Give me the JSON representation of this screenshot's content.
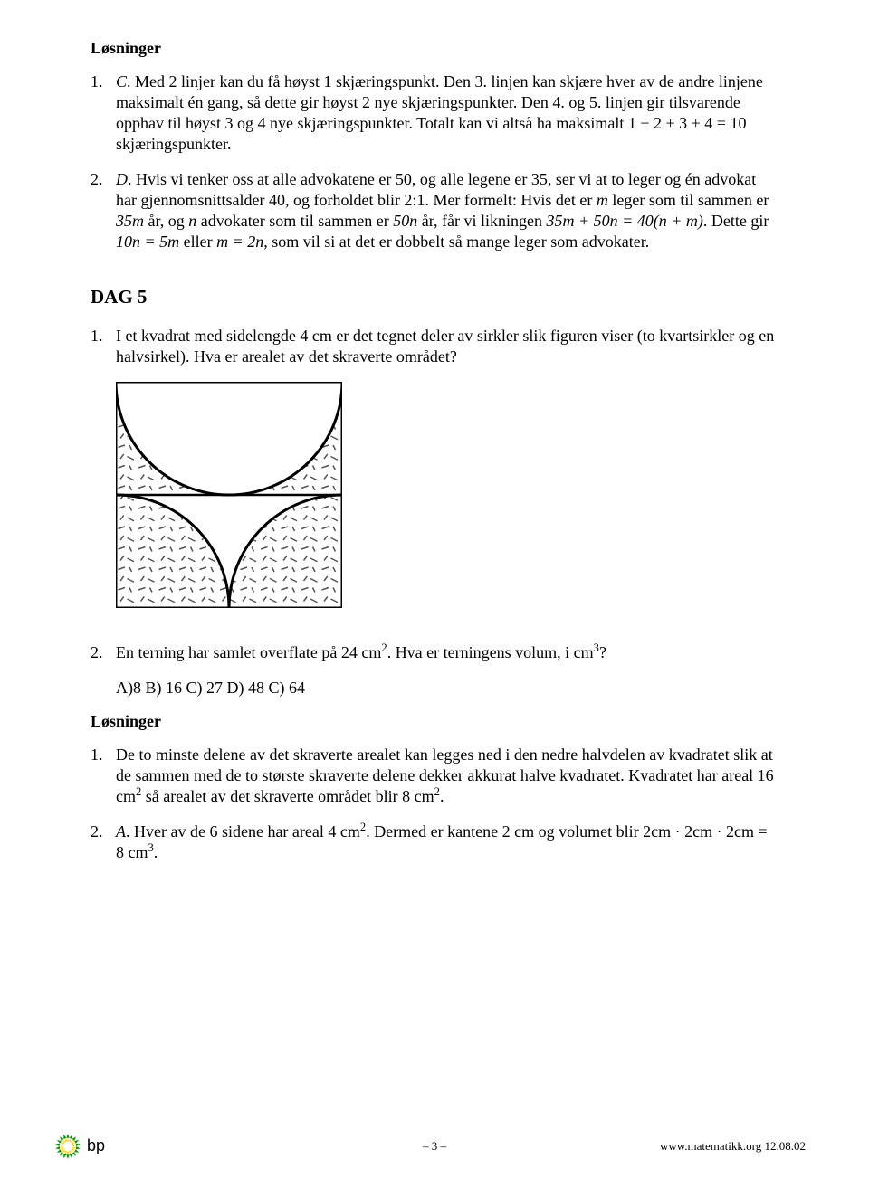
{
  "heading_solutions": "Løsninger",
  "sol1": {
    "marker": "1.",
    "text_html": "<span class='italic'>C</span>. Med 2 linjer kan du få høyst 1 skjæringspunkt. Den 3. linjen kan skjære hver av de andre linjene maksimalt én gang, så dette gir høyst 2 nye skjæringspunkter. Den 4. og 5. linjen gir tilsvarende opphav til høyst 3 og 4 nye skjæringspunkter. Totalt kan vi altså ha maksimalt 1 + 2 + 3 + 4 = 10 skjæringspunkter."
  },
  "sol2": {
    "marker": "2.",
    "text_html": "<span class='italic'>D</span>. Hvis vi tenker oss at alle advokatene er 50, og alle legene er 35, ser vi at to leger og én advokat har gjennomsnittsalder 40, og forholdet blir 2:1. Mer formelt: Hvis det er <span class='italic'>m</span> leger som til sammen er <span class='italic'>35m</span> år, og <span class='italic'>n</span> advokater som til sammen er <span class='italic'>50n</span> år, får vi likningen <span class='italic'>35m + 50n = 40(n + m)</span>. Dette gir <span class='italic'>10n = 5m</span> eller <span class='italic'>m = 2n</span>, som vil si at det er dobbelt så mange leger som advokater."
  },
  "dag_heading": "DAG 5",
  "q1": {
    "marker": "1.",
    "text": "I et kvadrat med sidelengde 4 cm er det tegnet deler av sirkler slik figuren viser (to kvartsirkler og en halvsirkel). Hva er arealet av det skraverte området?"
  },
  "q2": {
    "marker": "2.",
    "text_html": "En terning har samlet overflate på 24 cm<sup>2</sup>. Hva er terningens volum, i cm<sup>3</sup>?"
  },
  "q2_answers": "A)8  B) 16  C) 27  D) 48  C) 64",
  "heading_solutions2": "Løsninger",
  "a1": {
    "marker": "1.",
    "text_html": "De to minste delene av det skraverte arealet kan legges ned i den nedre halvdelen av kvadratet slik at de sammen med de to største skraverte delene dekker akkurat halve kvadratet. Kvadratet har areal 16 cm<sup>2</sup> så arealet av det skraverte området blir 8 cm<sup>2</sup>."
  },
  "a2": {
    "marker": "2.",
    "text_html": "<span class='italic'>A</span>. Hver av de 6 sidene har areal 4 cm<sup>2</sup>. Dermed er kantene 2 cm og volumet blir 2cm · 2cm · 2cm = 8 cm<sup>3</sup>."
  },
  "footer": {
    "brand": "bp",
    "page": "– 3 –",
    "url": "www.matematikk.org 12.08.02"
  },
  "figure": {
    "size": 250,
    "stroke": "#000000",
    "stroke_width": 2,
    "hatch_color": "#555555"
  },
  "logo": {
    "petals": 18,
    "inner_r": 3,
    "outer_r": 14,
    "color1": "#009900",
    "color2": "#ffcc00",
    "center": "#ffffff"
  }
}
